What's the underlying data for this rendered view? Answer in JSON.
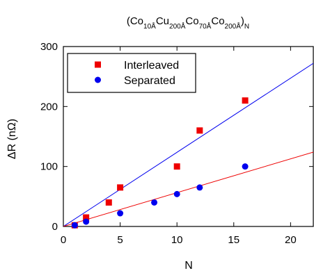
{
  "chart_data": {
    "type": "scatter",
    "title": {
      "parts": [
        {
          "text": "(",
          "sub": false
        },
        {
          "text": "Co",
          "sub": false
        },
        {
          "text": "10Å",
          "sub": true
        },
        {
          "text": "Cu",
          "sub": false
        },
        {
          "text": "200Å",
          "sub": true
        },
        {
          "text": "Co",
          "sub": false
        },
        {
          "text": "70Å",
          "sub": true
        },
        {
          "text": "Co",
          "sub": false
        },
        {
          "text": "200Å",
          "sub": true
        },
        {
          "text": ")",
          "sub": false
        },
        {
          "text": "N",
          "sub": true
        }
      ]
    },
    "xlabel": "N",
    "ylabel": "ΔR (nΩ)",
    "xlim": [
      0,
      22
    ],
    "ylim": [
      0,
      300
    ],
    "xticks": [
      0,
      5,
      10,
      15,
      20
    ],
    "yticks": [
      0,
      100,
      200,
      300
    ],
    "grid": false,
    "legend_position": "top-left",
    "series": [
      {
        "name": "Interleaved",
        "marker": "square",
        "color": "#ee0000",
        "points": [
          [
            1,
            2
          ],
          [
            2,
            15
          ],
          [
            4,
            40
          ],
          [
            5,
            65
          ],
          [
            10,
            100
          ],
          [
            12,
            160
          ],
          [
            16,
            210
          ]
        ]
      },
      {
        "name": "Separated",
        "marker": "circle",
        "color": "#0000ee",
        "points": [
          [
            1,
            2
          ],
          [
            2,
            8
          ],
          [
            5,
            22
          ],
          [
            8,
            40
          ],
          [
            10,
            54
          ],
          [
            12,
            65
          ],
          [
            16,
            100
          ]
        ]
      }
    ],
    "fit_lines": [
      {
        "color": "#0000ee",
        "from": [
          0,
          0
        ],
        "to": [
          22,
          272
        ]
      },
      {
        "color": "#ee0000",
        "from": [
          0,
          0
        ],
        "to": [
          22,
          124
        ]
      }
    ]
  }
}
